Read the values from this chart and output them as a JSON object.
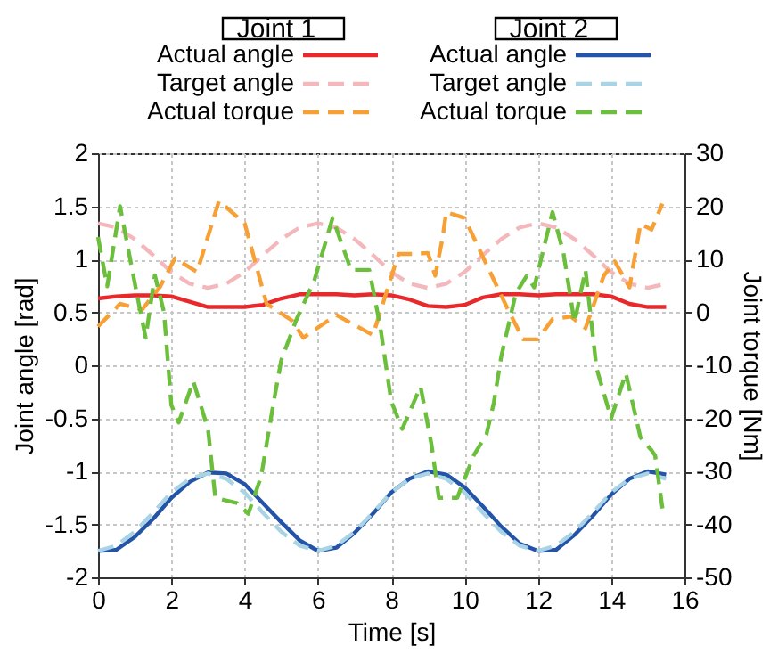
{
  "chart_data": {
    "type": "line",
    "xlabel": "Time [s]",
    "ylabel": "Joint angle [rad]",
    "y2label": "Joint torque [Nm]",
    "annotations": [
      "Joint 1",
      "Joint 2"
    ],
    "x": [
      0,
      0.5,
      1,
      1.5,
      2,
      2.5,
      3,
      3.5,
      4,
      4.5,
      5,
      5.5,
      6,
      6.5,
      7,
      7.5,
      8,
      8.5,
      9,
      9.5,
      10,
      10.5,
      11,
      11.5,
      12,
      12.5,
      13,
      13.5,
      14,
      14.5,
      15,
      15.5
    ],
    "series": [
      {
        "name": "Actual angle",
        "color": "#e8282a",
        "line_style": "solid",
        "values": [
          0.63,
          0.65,
          0.66,
          0.66,
          0.65,
          0.6,
          0.55,
          0.55,
          0.55,
          0.57,
          0.63,
          0.67,
          0.67,
          0.67,
          0.66,
          0.67,
          0.66,
          0.62,
          0.56,
          0.55,
          0.57,
          0.64,
          0.67,
          0.67,
          0.66,
          0.67,
          0.67,
          0.67,
          0.65,
          0.58,
          0.55,
          0.55
        ]
      },
      {
        "name": "Target angle",
        "color": "#f4b8bc",
        "line_style": "dashed",
        "values": [
          1.34,
          1.3,
          1.19,
          1.04,
          0.88,
          0.77,
          0.73,
          0.77,
          0.88,
          1.04,
          1.19,
          1.3,
          1.34,
          1.3,
          1.19,
          1.04,
          0.88,
          0.77,
          0.73,
          0.77,
          0.88,
          1.04,
          1.19,
          1.3,
          1.34,
          1.3,
          1.19,
          1.04,
          0.88,
          0.77,
          0.73,
          0.77
        ]
      },
      {
        "name": "Actual torque",
        "color": "#f7a035",
        "line_style": "dashed",
        "axis": "y2",
        "x": [
          0,
          0.6,
          1.2,
          1.7,
          2.1,
          2.7,
          3.3,
          4,
          4.6,
          5.3,
          5.6,
          6.5,
          7.5,
          8.2,
          8.6,
          9,
          9.2,
          9.4,
          9.5,
          10,
          10.6,
          11.2,
          11.6,
          12,
          12.4,
          12.9,
          13.3,
          13.8,
          14.1,
          14.5,
          14.8,
          15.1,
          15.4
        ],
        "values": [
          -2.7,
          1.6,
          0.5,
          4.9,
          10.2,
          7.6,
          21,
          16.8,
          1.6,
          -1.6,
          -4.8,
          -0.5,
          -4.3,
          11,
          11,
          11.2,
          6.9,
          14,
          18.9,
          17.8,
          9,
          0.3,
          -5.1,
          -5.1,
          -1.3,
          -0.8,
          -3,
          6.9,
          9.6,
          4.7,
          16.7,
          15.6,
          20.5
        ]
      },
      {
        "name": "Actual angle",
        "color": "#2454a8",
        "line_style": "solid",
        "values": [
          -1.75,
          -1.74,
          -1.62,
          -1.45,
          -1.25,
          -1.1,
          -1.01,
          -1.02,
          -1.12,
          -1.3,
          -1.48,
          -1.65,
          -1.75,
          -1.72,
          -1.58,
          -1.4,
          -1.2,
          -1.07,
          -1.0,
          -1.03,
          -1.15,
          -1.33,
          -1.52,
          -1.68,
          -1.75,
          -1.74,
          -1.6,
          -1.42,
          -1.22,
          -1.07,
          -1.0,
          -1.03
        ]
      },
      {
        "name": "Target angle",
        "color": "#a8d4e6",
        "line_style": "dashed",
        "values": [
          -1.75,
          -1.7,
          -1.57,
          -1.39,
          -1.2,
          -1.07,
          -1.02,
          -1.07,
          -1.2,
          -1.39,
          -1.57,
          -1.7,
          -1.75,
          -1.7,
          -1.57,
          -1.39,
          -1.2,
          -1.07,
          -1.02,
          -1.07,
          -1.2,
          -1.39,
          -1.57,
          -1.7,
          -1.75,
          -1.7,
          -1.57,
          -1.39,
          -1.2,
          -1.07,
          -1.02,
          -1.07
        ]
      },
      {
        "name": "Actual torque",
        "color": "#6cbf3c",
        "line_style": "dashed",
        "axis": "y2",
        "x": [
          0,
          0.25,
          0.6,
          1.05,
          1.3,
          1.55,
          1.8,
          2,
          2.2,
          2.6,
          3,
          3.2,
          3.8,
          4.1,
          4.45,
          4.8,
          5,
          5.4,
          5.9,
          6.4,
          6.9,
          7.4,
          7.7,
          8,
          8.3,
          8.8,
          9.1,
          9.3,
          9.8,
          10.25,
          10.6,
          10.8,
          11,
          11.4,
          11.7,
          11.9,
          12.4,
          12.7,
          13,
          13.3,
          13.6,
          14,
          14.4,
          14.8,
          15.1,
          15.2,
          15.4
        ],
        "values": [
          14.2,
          4.9,
          20,
          3.8,
          -4.8,
          7,
          0,
          -17.5,
          -20.8,
          -13,
          -22,
          -35,
          -36,
          -38,
          -31,
          -16.6,
          -9,
          -1.6,
          6,
          17.8,
          8,
          8,
          -2.7,
          -16.8,
          -22,
          -14,
          -25,
          -35,
          -35,
          -27,
          -23,
          -17,
          -8.4,
          3.6,
          6.9,
          4.7,
          18.9,
          11.2,
          -1.9,
          8,
          -10.5,
          -20,
          -11.5,
          -23.6,
          -26,
          -27,
          -37
        ]
      }
    ],
    "xlim": [
      0,
      16
    ],
    "xticks": [
      0,
      2,
      4,
      6,
      8,
      10,
      12,
      14,
      16
    ],
    "ylim": [
      -2,
      2
    ],
    "yticks": [
      -2,
      -1.5,
      -1,
      -0.5,
      0,
      0.5,
      1,
      1.5,
      2
    ],
    "y2lim": [
      -50,
      30
    ],
    "y2ticks": [
      -50,
      -40,
      -30,
      -20,
      -10,
      0,
      10,
      20,
      30
    ],
    "grid": true,
    "legend": "top",
    "marker": "none"
  }
}
